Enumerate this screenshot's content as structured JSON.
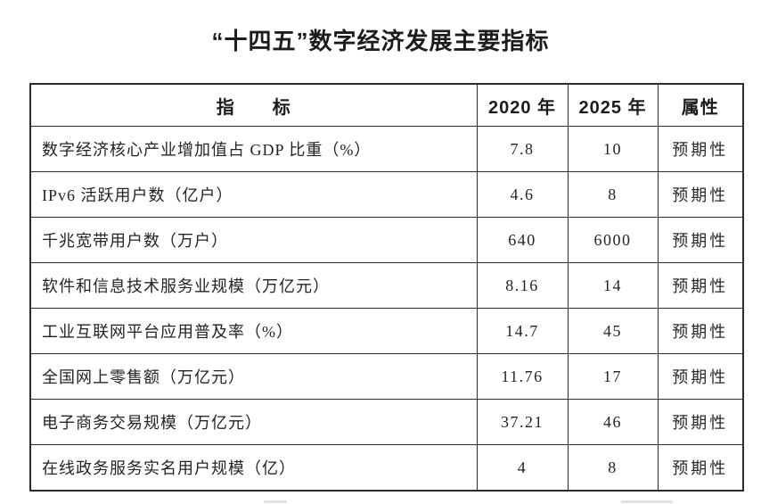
{
  "colors": {
    "background": "#ffffff",
    "text": "#242424",
    "border": "#2c2c2c"
  },
  "chart_data": {
    "type": "table",
    "title": "“十四五”数字经济发展主要指标",
    "headers": [
      "指　　标",
      "2020 年",
      "2025 年",
      "属性"
    ],
    "rows": [
      [
        "数字经济核心产业增加值占 GDP 比重（%）",
        "7.8",
        "10",
        "预期性"
      ],
      [
        "IPv6 活跃用户数（亿户）",
        "4.6",
        "8",
        "预期性"
      ],
      [
        "千兆宽带用户数（万户）",
        "640",
        "6000",
        "预期性"
      ],
      [
        "软件和信息技术服务业规模（万亿元）",
        "8.16",
        "14",
        "预期性"
      ],
      [
        "工业互联网平台应用普及率（%）",
        "14.7",
        "45",
        "预期性"
      ],
      [
        "全国网上零售额（万亿元）",
        "11.76",
        "17",
        "预期性"
      ],
      [
        "电子商务交易规模（万亿元）",
        "37.21",
        "46",
        "预期性"
      ],
      [
        "在线政务服务实名用户规模（亿）",
        "4",
        "8",
        "预期性"
      ]
    ]
  }
}
